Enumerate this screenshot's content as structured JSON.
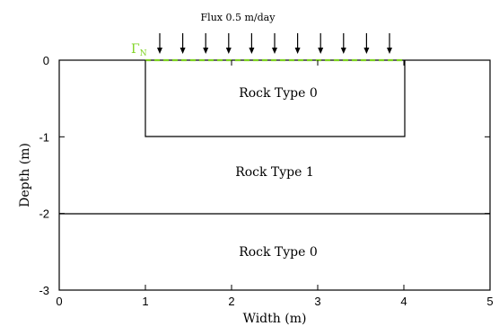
{
  "flux_label": "Flux 0.5 m/day",
  "boundary_label": {
    "symbol": "Γ",
    "subscript": "N"
  },
  "axes": {
    "xlabel": "Width (m)",
    "ylabel": "Depth (m)",
    "x_ticks": [
      "0",
      "1",
      "2",
      "3",
      "4",
      "5"
    ],
    "y_ticks": [
      "0",
      "-1",
      "-2",
      "-3"
    ]
  },
  "regions": {
    "inner_top": "Rock Type 0",
    "middle": "Rock Type 1",
    "bottom": "Rock Type 0"
  },
  "colors": {
    "boundary": "#7ed321",
    "lines": "#000000"
  },
  "arrow_count": 11
}
